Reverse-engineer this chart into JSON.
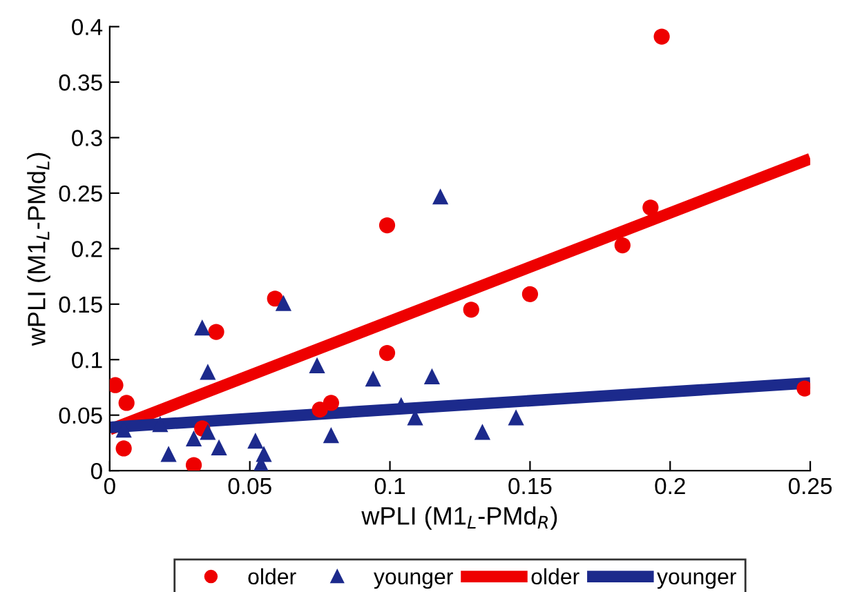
{
  "chart_data": {
    "type": "scatter",
    "xlabel": "wPLI (M1$_{L}$-PMd$_{R}$)",
    "ylabel": "wPLI (M1$_{L}$-PMd$_{L}$)",
    "xlim": [
      0,
      0.25
    ],
    "ylim": [
      0,
      0.4
    ],
    "xticks": [
      0,
      0.05,
      0.1,
      0.15,
      0.2,
      0.25
    ],
    "yticks": [
      0,
      0.05,
      0.1,
      0.15,
      0.2,
      0.25,
      0.3,
      0.35,
      0.4
    ],
    "grid": false,
    "legend": "bottom",
    "series": [
      {
        "name": "older",
        "marker": "circle",
        "color": "#ee0000",
        "x": [
          0.002,
          0.006,
          0.005,
          0.03,
          0.033,
          0.038,
          0.059,
          0.075,
          0.079,
          0.099,
          0.099,
          0.129,
          0.15,
          0.183,
          0.193,
          0.197,
          0.248
        ],
        "values": [
          0.077,
          0.061,
          0.02,
          0.005,
          0.038,
          0.125,
          0.155,
          0.055,
          0.061,
          0.221,
          0.106,
          0.145,
          0.159,
          0.203,
          0.237,
          0.391,
          0.074
        ]
      },
      {
        "name": "younger",
        "marker": "triangle",
        "color": "#1c2a8c",
        "x": [
          0.005,
          0.018,
          0.021,
          0.03,
          0.033,
          0.035,
          0.035,
          0.039,
          0.052,
          0.055,
          0.054,
          0.062,
          0.074,
          0.079,
          0.094,
          0.104,
          0.109,
          0.115,
          0.118,
          0.133,
          0.145
        ],
        "values": [
          0.037,
          0.042,
          0.015,
          0.029,
          0.129,
          0.089,
          0.035,
          0.021,
          0.027,
          0.015,
          0.006,
          0.151,
          0.095,
          0.032,
          0.083,
          0.059,
          0.048,
          0.085,
          0.247,
          0.035,
          0.048
        ]
      },
      {
        "name": "older",
        "type": "line",
        "marker": "none",
        "line_style": "solid",
        "color": "#ee0000",
        "x": [
          0,
          0.25
        ],
        "values": [
          0.037,
          0.281
        ]
      },
      {
        "name": "younger",
        "type": "line",
        "marker": "none",
        "line_style": "solid",
        "color": "#1c2a8c",
        "x": [
          0,
          0.25
        ],
        "values": [
          0.039,
          0.079
        ]
      }
    ]
  }
}
